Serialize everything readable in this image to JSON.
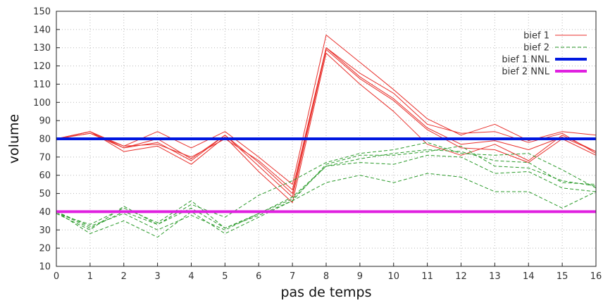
{
  "chart_data": {
    "type": "line",
    "xlabel": "pas de temps",
    "ylabel": "volume",
    "xlim": [
      0,
      16
    ],
    "ylim": [
      10,
      150
    ],
    "xticks": [
      0,
      1,
      2,
      3,
      4,
      5,
      6,
      7,
      8,
      9,
      10,
      11,
      12,
      13,
      14,
      15,
      16
    ],
    "yticks": [
      10,
      20,
      30,
      40,
      50,
      60,
      70,
      80,
      90,
      100,
      110,
      120,
      130,
      140,
      150
    ],
    "grid": true,
    "legend_position": "top-right",
    "x": [
      0,
      1,
      2,
      3,
      4,
      5,
      6,
      7,
      8,
      9,
      10,
      11,
      12,
      13,
      14,
      15,
      16
    ],
    "series": [
      {
        "name": "bief 1",
        "color": "#e8302c",
        "style": "solid",
        "runs": [
          [
            80,
            84,
            73,
            76,
            66,
            81,
            62,
            45,
            127,
            110,
            95,
            77,
            71,
            77,
            68,
            82,
            73
          ],
          [
            80,
            83,
            75,
            78,
            68,
            82,
            65,
            48,
            129,
            113,
            101,
            85,
            75,
            74,
            67,
            80,
            71
          ],
          [
            80,
            84,
            76,
            84,
            75,
            84,
            70,
            55,
            137,
            122,
            107,
            91,
            82,
            88,
            79,
            84,
            82
          ],
          [
            80,
            83,
            76,
            77,
            70,
            80,
            68,
            52,
            130,
            116,
            105,
            88,
            83,
            84,
            78,
            83,
            72
          ],
          [
            80,
            84,
            75,
            80,
            69,
            82,
            67,
            50,
            130,
            114,
            102,
            86,
            77,
            79,
            74,
            81,
            73
          ]
        ]
      },
      {
        "name": "bief 2",
        "color": "#2a9a2a",
        "style": "dashed",
        "runs": [
          [
            40,
            28,
            35,
            26,
            40,
            28,
            37,
            46,
            56,
            60,
            56,
            61,
            59,
            51,
            51,
            42,
            51
          ],
          [
            39,
            30,
            43,
            33,
            42,
            31,
            38,
            46,
            66,
            71,
            71,
            73,
            76,
            65,
            64,
            57,
            54
          ],
          [
            40,
            32,
            39,
            30,
            38,
            30,
            39,
            47,
            65,
            67,
            66,
            71,
            70,
            61,
            62,
            53,
            51
          ],
          [
            40,
            31,
            40,
            33,
            44,
            37,
            49,
            57,
            67,
            72,
            74,
            78,
            72,
            71,
            72,
            63,
            53
          ],
          [
            39,
            33,
            42,
            34,
            46,
            31,
            39,
            48,
            65,
            69,
            72,
            74,
            73,
            68,
            67,
            56,
            55
          ]
        ]
      },
      {
        "name": "bief 1 NNL",
        "color": "#0018e0",
        "style": "thick",
        "constant": 80
      },
      {
        "name": "bief 2 NNL",
        "color": "#e020e0",
        "style": "thick",
        "constant": 40
      }
    ]
  }
}
